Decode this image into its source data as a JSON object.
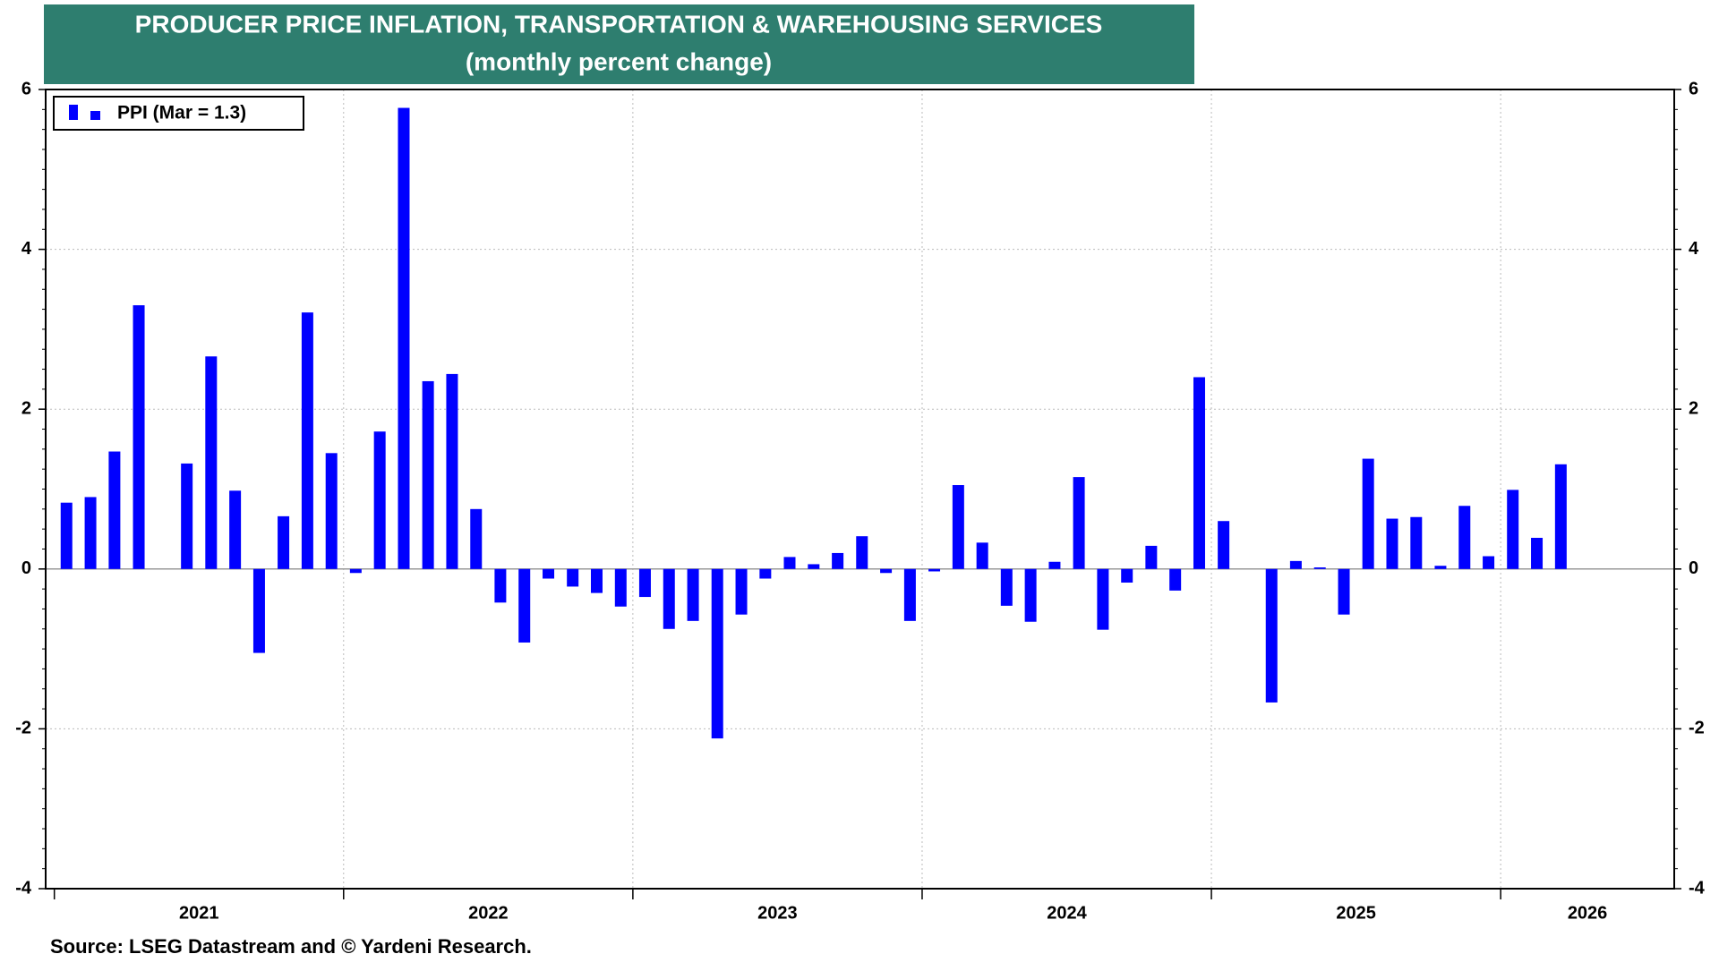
{
  "chart_data": {
    "type": "bar",
    "title": "PRODUCER PRICE INFLATION, TRANSPORTATION & WAREHOUSING SERVICES",
    "subtitle": "(monthly percent change)",
    "source": "Source: LSEG Datastream and © Yardeni Research.",
    "x": [
      2021.042,
      2021.125,
      2021.208,
      2021.292,
      2021.375,
      2021.458,
      2021.542,
      2021.625,
      2021.708,
      2021.792,
      2021.875,
      2021.958,
      2022.042,
      2022.125,
      2022.208,
      2022.292,
      2022.375,
      2022.458,
      2022.542,
      2022.625,
      2022.708,
      2022.792,
      2022.875,
      2022.958,
      2023.042,
      2023.125,
      2023.208,
      2023.292,
      2023.375,
      2023.458,
      2023.542,
      2023.625,
      2023.708,
      2023.792,
      2023.875,
      2023.958,
      2024.042,
      2024.125,
      2024.208,
      2024.292,
      2024.375,
      2024.458,
      2024.542,
      2024.625,
      2024.708,
      2024.792,
      2024.875,
      2024.958,
      2025.042,
      2025.125,
      2025.208,
      2025.292,
      2025.375,
      2025.458,
      2025.542,
      2025.625,
      2025.708,
      2025.792,
      2025.875,
      2025.958,
      2026.042,
      2026.125,
      2026.208
    ],
    "series": [
      {
        "name": "PPI (Mar = 1.3)",
        "color": "#0000ff",
        "values": [
          0.83,
          0.9,
          1.47,
          3.3,
          null,
          1.32,
          2.66,
          0.98,
          -1.05,
          0.66,
          3.21,
          1.45,
          -0.05,
          1.72,
          5.77,
          2.35,
          2.44,
          0.75,
          -0.42,
          -0.92,
          -0.12,
          -0.22,
          -0.3,
          -0.47,
          -0.35,
          -0.75,
          -0.65,
          -2.12,
          -0.57,
          -0.12,
          0.15,
          0.06,
          0.2,
          0.41,
          -0.05,
          -0.65,
          -0.03,
          1.05,
          0.33,
          -0.46,
          -0.66,
          0.09,
          1.15,
          -0.76,
          -0.17,
          0.29,
          -0.27,
          2.4,
          0.6,
          null,
          -1.67,
          0.1,
          0.02,
          -0.57,
          1.38,
          0.63,
          0.65,
          0.04,
          0.79,
          0.16,
          0.99,
          0.39,
          1.31
        ]
      }
    ],
    "xlim": [
      2020.97,
      2026.6
    ],
    "xticks": [
      2021,
      2022,
      2023,
      2024,
      2025,
      2026
    ],
    "ylim": [
      -4,
      6
    ],
    "yticks": [
      -4,
      -2,
      0,
      2,
      4,
      6
    ],
    "grid": true,
    "legend": "upper left"
  }
}
